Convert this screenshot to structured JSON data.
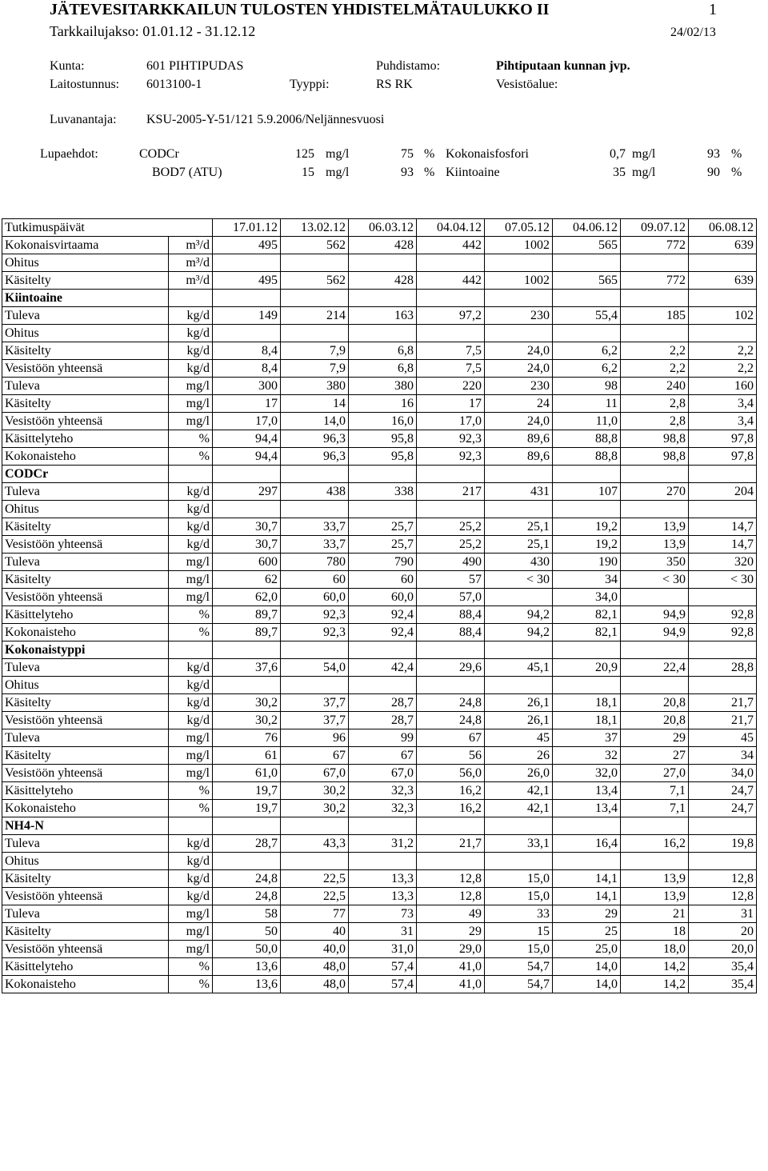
{
  "header": {
    "title": "JÄTEVESITARKKAILUN TULOSTEN YHDISTELMÄTAULUKKO II",
    "page": "1",
    "period": "Tarkkailujakso: 01.01.12 - 31.12.12",
    "date": "24/02/13"
  },
  "info": {
    "kunta_label": "Kunta:",
    "kunta": "601 PIHTIPUDAS",
    "puhdistamo_label": "Puhdistamo:",
    "puhdistamo": "Pihtiputaan kunnan jvp.",
    "laitostunnus_label": "Laitostunnus:",
    "laitostunnus": "6013100-1",
    "tyyppi_label": "Tyyppi:",
    "tyyppi": "RS RK",
    "vesistoalue_label": "Vesistöalue:",
    "luvanantaja_label": "Luvanantaja:",
    "luvanantaja": "KSU-2005-Y-51/121 5.9.2006/Neljännesvuosi"
  },
  "permit": {
    "label": "Lupaehdot:",
    "items": [
      {
        "param": "CODCr",
        "limit": "125",
        "unit": "mg/l",
        "reduction": "75",
        "reduction_unit": "%"
      },
      {
        "param": "Kokonaisfosfori",
        "limit": "0,7",
        "unit": "mg/l",
        "reduction": "93",
        "reduction_unit": "%"
      },
      {
        "param": "BOD7 (ATU)",
        "limit": "15",
        "unit": "mg/l",
        "reduction": "93",
        "reduction_unit": "%"
      },
      {
        "param": "Kiintoaine",
        "limit": "35",
        "unit": "mg/l",
        "reduction": "90",
        "reduction_unit": "%"
      }
    ]
  },
  "table": {
    "header": "Tutkimuspäivät",
    "dates": [
      "17.01.12",
      "13.02.12",
      "06.03.12",
      "04.04.12",
      "07.05.12",
      "04.06.12",
      "09.07.12",
      "06.08.12"
    ],
    "rows": [
      {
        "label": "Kokonaisvirtaama",
        "unit": "m³/d",
        "values": [
          "495",
          "562",
          "428",
          "442",
          "1002",
          "565",
          "772",
          "639"
        ]
      },
      {
        "label": "Ohitus",
        "unit": "m³/d"
      },
      {
        "label": "Käsitelty",
        "unit": "m³/d",
        "values": [
          "495",
          "562",
          "428",
          "442",
          "1002",
          "565",
          "772",
          "639"
        ]
      },
      {
        "section": "Kiintoaine"
      },
      {
        "label": "Tuleva",
        "unit": "kg/d",
        "values": [
          "149",
          "214",
          "163",
          "97,2",
          "230",
          "55,4",
          "185",
          "102"
        ]
      },
      {
        "label": "Ohitus",
        "unit": "kg/d"
      },
      {
        "label": "Käsitelty",
        "unit": "kg/d",
        "values": [
          "8,4",
          "7,9",
          "6,8",
          "7,5",
          "24,0",
          "6,2",
          "2,2",
          "2,2"
        ]
      },
      {
        "label": "Vesistöön yhteensä",
        "unit": "kg/d",
        "values": [
          "8,4",
          "7,9",
          "6,8",
          "7,5",
          "24,0",
          "6,2",
          "2,2",
          "2,2"
        ]
      },
      {
        "label": "Tuleva",
        "unit": "mg/l",
        "values": [
          "300",
          "380",
          "380",
          "220",
          "230",
          "98",
          "240",
          "160"
        ]
      },
      {
        "label": "Käsitelty",
        "unit": "mg/l",
        "values": [
          "17",
          "14",
          "16",
          "17",
          "24",
          "11",
          "2,8",
          "3,4"
        ]
      },
      {
        "label": "Vesistöön yhteensä",
        "unit": "mg/l",
        "values": [
          "17,0",
          "14,0",
          "16,0",
          "17,0",
          "24,0",
          "11,0",
          "2,8",
          "3,4"
        ]
      },
      {
        "label": "Käsittelyteho",
        "unit": "%",
        "values": [
          "94,4",
          "96,3",
          "95,8",
          "92,3",
          "89,6",
          "88,8",
          "98,8",
          "97,8"
        ]
      },
      {
        "label": "Kokonaisteho",
        "unit": "%",
        "values": [
          "94,4",
          "96,3",
          "95,8",
          "92,3",
          "89,6",
          "88,8",
          "98,8",
          "97,8"
        ]
      },
      {
        "section": "CODCr"
      },
      {
        "label": "Tuleva",
        "unit": "kg/d",
        "values": [
          "297",
          "438",
          "338",
          "217",
          "431",
          "107",
          "270",
          "204"
        ]
      },
      {
        "label": "Ohitus",
        "unit": "kg/d"
      },
      {
        "label": "Käsitelty",
        "unit": "kg/d",
        "values": [
          "30,7",
          "33,7",
          "25,7",
          "25,2",
          "25,1",
          "19,2",
          "13,9",
          "14,7"
        ]
      },
      {
        "label": "Vesistöön yhteensä",
        "unit": "kg/d",
        "values": [
          "30,7",
          "33,7",
          "25,7",
          "25,2",
          "25,1",
          "19,2",
          "13,9",
          "14,7"
        ]
      },
      {
        "label": "Tuleva",
        "unit": "mg/l",
        "values": [
          "600",
          "780",
          "790",
          "490",
          "430",
          "190",
          "350",
          "320"
        ]
      },
      {
        "label": "Käsitelty",
        "unit": "mg/l",
        "values": [
          "62",
          "60",
          "60",
          "57",
          "< 30",
          "34",
          "< 30",
          "< 30"
        ]
      },
      {
        "label": "Vesistöön yhteensä",
        "unit": "mg/l",
        "values": [
          "62,0",
          "60,0",
          "60,0",
          "57,0",
          null,
          "34,0",
          null,
          null
        ]
      },
      {
        "label": "Käsittelyteho",
        "unit": "%",
        "values": [
          "89,7",
          "92,3",
          "92,4",
          "88,4",
          "94,2",
          "82,1",
          "94,9",
          "92,8"
        ]
      },
      {
        "label": "Kokonaisteho",
        "unit": "%",
        "values": [
          "89,7",
          "92,3",
          "92,4",
          "88,4",
          "94,2",
          "82,1",
          "94,9",
          "92,8"
        ]
      },
      {
        "section": "Kokonaistyppi"
      },
      {
        "label": "Tuleva",
        "unit": "kg/d",
        "values": [
          "37,6",
          "54,0",
          "42,4",
          "29,6",
          "45,1",
          "20,9",
          "22,4",
          "28,8"
        ]
      },
      {
        "label": "Ohitus",
        "unit": "kg/d"
      },
      {
        "label": "Käsitelty",
        "unit": "kg/d",
        "values": [
          "30,2",
          "37,7",
          "28,7",
          "24,8",
          "26,1",
          "18,1",
          "20,8",
          "21,7"
        ]
      },
      {
        "label": "Vesistöön yhteensä",
        "unit": "kg/d",
        "values": [
          "30,2",
          "37,7",
          "28,7",
          "24,8",
          "26,1",
          "18,1",
          "20,8",
          "21,7"
        ]
      },
      {
        "label": "Tuleva",
        "unit": "mg/l",
        "values": [
          "76",
          "96",
          "99",
          "67",
          "45",
          "37",
          "29",
          "45"
        ]
      },
      {
        "label": "Käsitelty",
        "unit": "mg/l",
        "values": [
          "61",
          "67",
          "67",
          "56",
          "26",
          "32",
          "27",
          "34"
        ]
      },
      {
        "label": "Vesistöön yhteensä",
        "unit": "mg/l",
        "values": [
          "61,0",
          "67,0",
          "67,0",
          "56,0",
          "26,0",
          "32,0",
          "27,0",
          "34,0"
        ]
      },
      {
        "label": "Käsittelyteho",
        "unit": "%",
        "values": [
          "19,7",
          "30,2",
          "32,3",
          "16,2",
          "42,1",
          "13,4",
          "7,1",
          "24,7"
        ]
      },
      {
        "label": "Kokonaisteho",
        "unit": "%",
        "values": [
          "19,7",
          "30,2",
          "32,3",
          "16,2",
          "42,1",
          "13,4",
          "7,1",
          "24,7"
        ]
      },
      {
        "section": "NH4-N"
      },
      {
        "label": "Tuleva",
        "unit": "kg/d",
        "values": [
          "28,7",
          "43,3",
          "31,2",
          "21,7",
          "33,1",
          "16,4",
          "16,2",
          "19,8"
        ]
      },
      {
        "label": "Ohitus",
        "unit": "kg/d"
      },
      {
        "label": "Käsitelty",
        "unit": "kg/d",
        "values": [
          "24,8",
          "22,5",
          "13,3",
          "12,8",
          "15,0",
          "14,1",
          "13,9",
          "12,8"
        ]
      },
      {
        "label": "Vesistöön yhteensä",
        "unit": "kg/d",
        "values": [
          "24,8",
          "22,5",
          "13,3",
          "12,8",
          "15,0",
          "14,1",
          "13,9",
          "12,8"
        ]
      },
      {
        "label": "Tuleva",
        "unit": "mg/l",
        "values": [
          "58",
          "77",
          "73",
          "49",
          "33",
          "29",
          "21",
          "31"
        ]
      },
      {
        "label": "Käsitelty",
        "unit": "mg/l",
        "values": [
          "50",
          "40",
          "31",
          "29",
          "15",
          "25",
          "18",
          "20"
        ]
      },
      {
        "label": "Vesistöön yhteensä",
        "unit": "mg/l",
        "values": [
          "50,0",
          "40,0",
          "31,0",
          "29,0",
          "15,0",
          "25,0",
          "18,0",
          "20,0"
        ]
      },
      {
        "label": "Käsittelyteho",
        "unit": "%",
        "values": [
          "13,6",
          "48,0",
          "57,4",
          "41,0",
          "54,7",
          "14,0",
          "14,2",
          "35,4"
        ]
      },
      {
        "label": "Kokonaisteho",
        "unit": "%",
        "values": [
          "13,6",
          "48,0",
          "57,4",
          "41,0",
          "54,7",
          "14,0",
          "14,2",
          "35,4"
        ]
      }
    ]
  }
}
